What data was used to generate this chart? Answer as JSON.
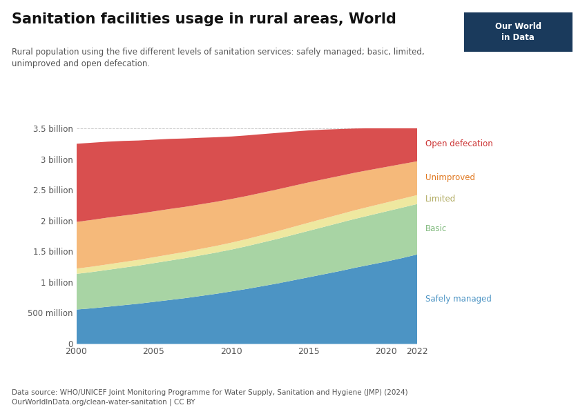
{
  "title": "Sanitation facilities usage in rural areas, World",
  "subtitle": "Rural population using the five different levels of sanitation services: safely managed; basic, limited,\nunimproved and open defecation.",
  "datasource": "Data source: WHO/UNICEF Joint Monitoring Programme for Water Supply, Sanitation and Hygiene (JMP) (2024)\nOurWorldInData.org/clean-water-sanitation | CC BY",
  "years": [
    2000,
    2001,
    2002,
    2003,
    2004,
    2005,
    2006,
    2007,
    2008,
    2009,
    2010,
    2011,
    2012,
    2013,
    2014,
    2015,
    2016,
    2017,
    2018,
    2019,
    2020,
    2021,
    2022
  ],
  "safely_managed": [
    560,
    580,
    605,
    630,
    655,
    685,
    715,
    745,
    780,
    815,
    855,
    895,
    940,
    985,
    1035,
    1085,
    1135,
    1185,
    1240,
    1290,
    1340,
    1395,
    1455
  ],
  "basic": [
    580,
    590,
    600,
    610,
    620,
    630,
    640,
    650,
    660,
    670,
    680,
    695,
    710,
    725,
    740,
    755,
    770,
    785,
    795,
    805,
    815,
    820,
    820
  ],
  "limited": [
    85,
    87,
    89,
    91,
    93,
    96,
    99,
    102,
    105,
    108,
    112,
    116,
    120,
    124,
    128,
    132,
    135,
    137,
    140,
    142,
    143,
    144,
    145
  ],
  "unimproved": [
    760,
    760,
    760,
    755,
    750,
    745,
    740,
    732,
    725,
    718,
    710,
    700,
    690,
    680,
    668,
    655,
    640,
    625,
    610,
    595,
    580,
    565,
    550
  ],
  "open_defecation": [
    1270,
    1255,
    1235,
    1215,
    1190,
    1165,
    1140,
    1112,
    1082,
    1050,
    1016,
    985,
    952,
    918,
    882,
    845,
    805,
    762,
    718,
    675,
    630,
    585,
    545
  ],
  "colors": {
    "safely_managed": "#4C94C4",
    "basic": "#A8D4A4",
    "limited": "#EEE8A0",
    "unimproved": "#F5B97A",
    "open_defecation": "#D94F4F"
  },
  "label_colors": {
    "safely_managed": "#4C94C4",
    "basic": "#7DB87A",
    "limited": "#B0AA60",
    "unimproved": "#E07820",
    "open_defecation": "#CC3333"
  },
  "ytick_labels": [
    "0",
    "500 million",
    "1 billion",
    "1.5 billion",
    "2 billion",
    "2.5 billion",
    "3 billion",
    "3.5 billion"
  ],
  "xticks": [
    2000,
    2005,
    2010,
    2015,
    2020,
    2022
  ],
  "background_color": "#FFFFFF",
  "owid_box_color": "#1A3A5C",
  "owid_text": "Our World\nin Data"
}
